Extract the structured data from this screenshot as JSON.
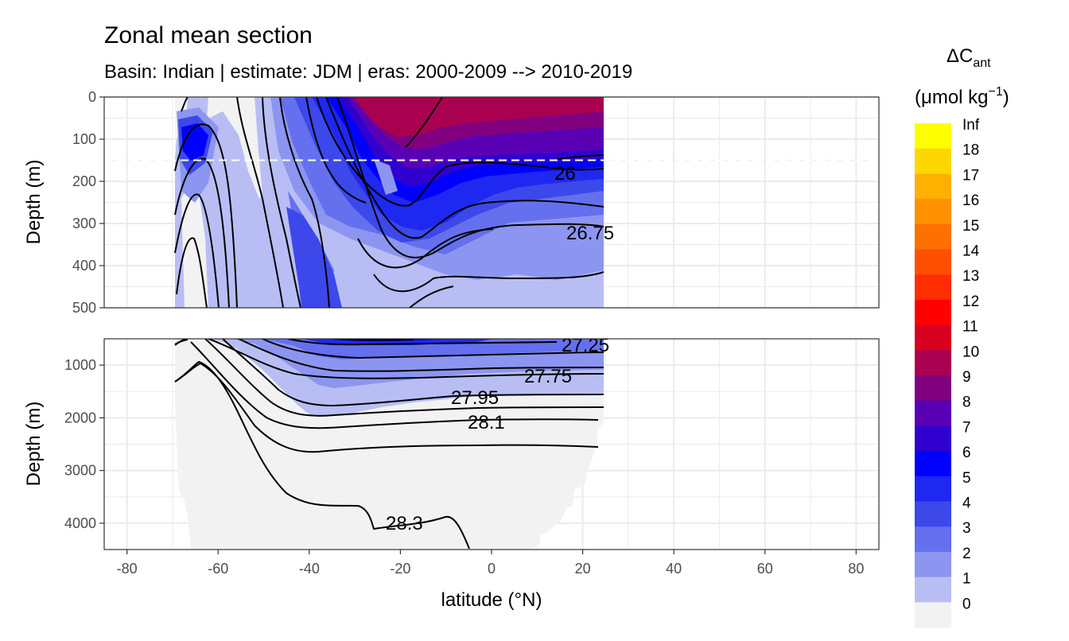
{
  "chart_data": {
    "type": "contour",
    "title": "Zonal mean section",
    "subtitle": "Basin: Indian | estimate: JDM  | eras: 2000-2009 --> 2010-2019",
    "xlabel": "latitude (°N)",
    "ylabel_top": "Depth (m)",
    "ylabel_bottom": "Depth (m)",
    "xlim": [
      -85,
      85
    ],
    "x_ticks": [
      -80,
      -60,
      -40,
      -20,
      0,
      20,
      40,
      60,
      80
    ],
    "x_tick_labels": [
      "-80",
      "-60",
      "-40",
      "-20",
      "0",
      "20",
      "40",
      "60",
      "80"
    ],
    "top_panel": {
      "ylim": [
        0,
        500
      ],
      "y_ticks": [
        0,
        100,
        200,
        300,
        400,
        500
      ],
      "y_tick_labels": [
        "0",
        "100",
        "200",
        "300",
        "400",
        "500"
      ],
      "dashed_reference_depth": 150
    },
    "bottom_panel": {
      "ylim": [
        500,
        4500
      ],
      "y_ticks": [
        1000,
        2000,
        3000,
        4000
      ],
      "y_tick_labels": [
        "1000",
        "2000",
        "3000",
        "4000"
      ]
    },
    "data_extent_lat": [
      -70,
      24.5
    ],
    "legend": {
      "title_main": "ΔC",
      "title_sub": "ant",
      "unit_main": "(μmol kg",
      "unit_sup": "−1",
      "unit_close": ")",
      "placement": "right",
      "labels": [
        "Inf",
        "18",
        "17",
        "16",
        "15",
        "14",
        "13",
        "12",
        "11",
        "10",
        "9",
        "8",
        "7",
        "6",
        "5",
        "4",
        "3",
        "2",
        "1",
        "0"
      ],
      "colors": [
        "#FFFF00",
        "#FFD700",
        "#FFB000",
        "#FF9000",
        "#FF7000",
        "#FF5000",
        "#FF2E00",
        "#FF0000",
        "#D80020",
        "#AA0050",
        "#800080",
        "#5A00B4",
        "#3000D0",
        "#0000FF",
        "#1E28F0",
        "#3C48EA",
        "#6470EE",
        "#8C96F0",
        "#B8BEF4",
        "#F2F2F2"
      ]
    },
    "isopycnal_labels": {
      "top": [
        "26",
        "26.75"
      ],
      "bottom": [
        "27.25",
        "27.75",
        "27.95",
        "28.1",
        "28.3"
      ]
    },
    "colors": {
      "panel_background": "#ffffff",
      "grid": "#ebebeb",
      "panel_border": "#333333",
      "no_data_fill": "#f2f2f2",
      "contour_line": "#000000",
      "reference_line": "#ffffff"
    }
  }
}
